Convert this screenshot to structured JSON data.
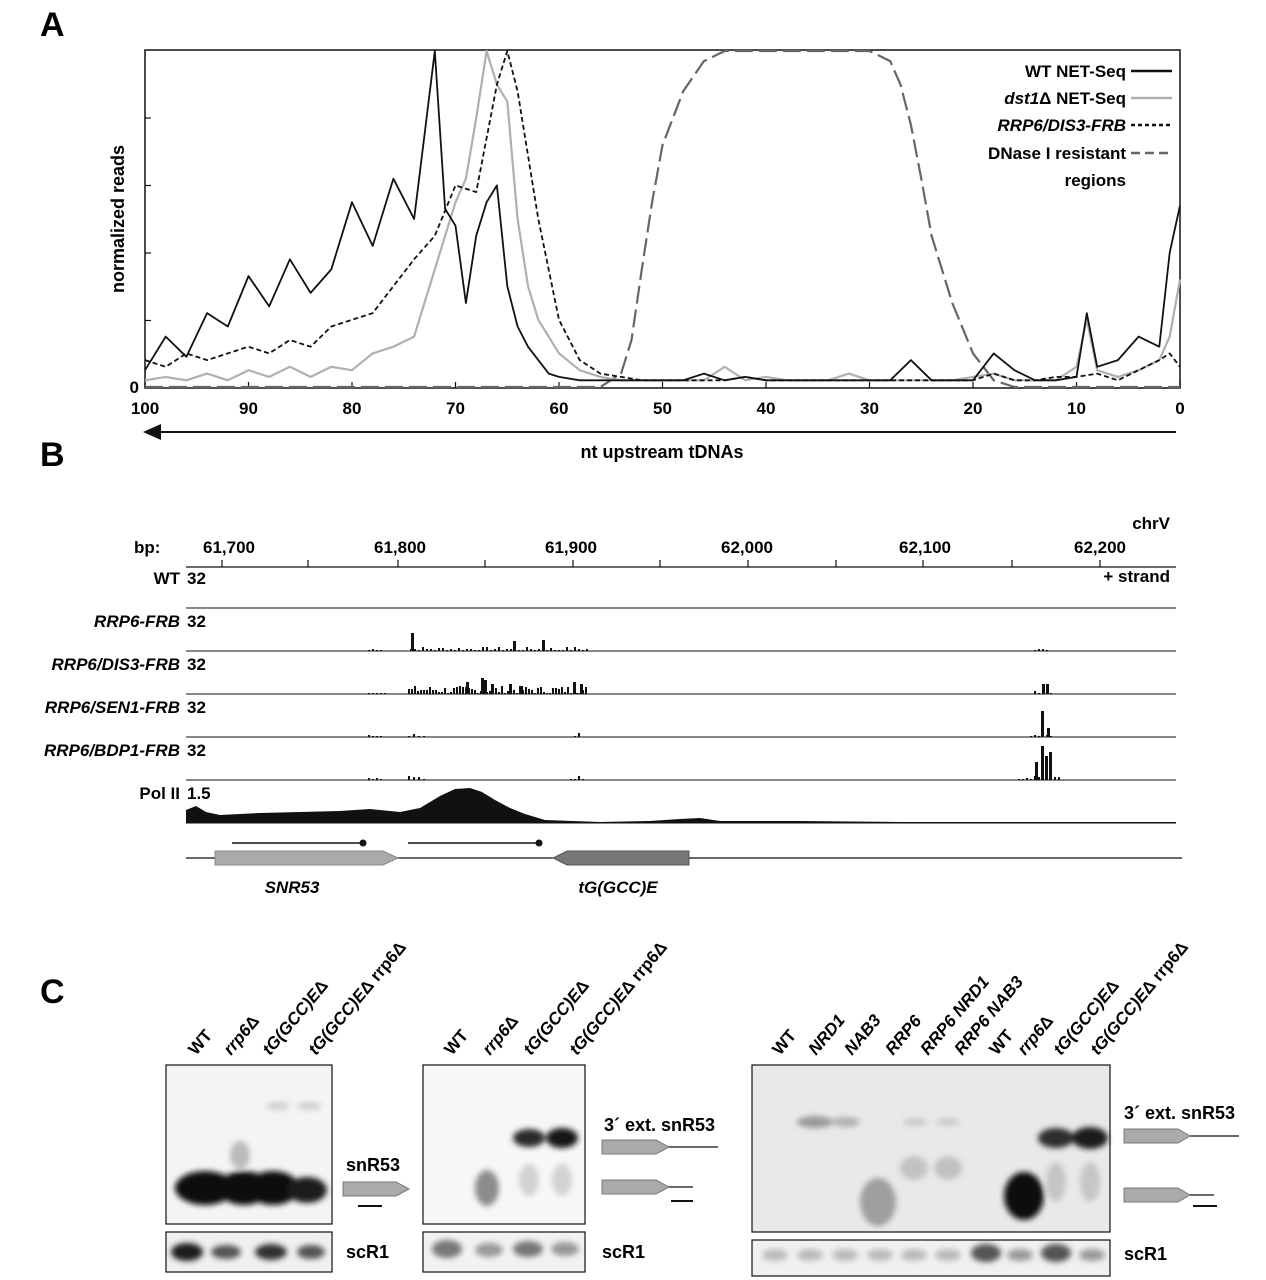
{
  "panel_a": {
    "letter": "A",
    "chart_data": {
      "type": "line",
      "xlabel": "nt upstream tDNAs",
      "ylabel": "normalized reads",
      "xlim": [
        100,
        0
      ],
      "x_reversed": true,
      "x_ticks": [
        "100",
        "90",
        "80",
        "70",
        "60",
        "50",
        "40",
        "30",
        "20",
        "10",
        "0"
      ],
      "y_ticks": [
        "0"
      ],
      "ylim": [
        0,
        1
      ],
      "legend_placement": "top-right",
      "series": [
        {
          "name": "WT NET-Seq",
          "name_prefix": "WT",
          "name_italic": "",
          "name_suffix": " NET-Seq",
          "color": "#111111",
          "style": "solid",
          "x": [
            100,
            98,
            96,
            94,
            92,
            90,
            88,
            86,
            84,
            82,
            80,
            78,
            76,
            74,
            73,
            72,
            71,
            70,
            69,
            68,
            67,
            66,
            65,
            64,
            63,
            62,
            61,
            60,
            58,
            56,
            54,
            52,
            50,
            48,
            46,
            44,
            42,
            40,
            38,
            36,
            34,
            32,
            30,
            28,
            26,
            24,
            22,
            20,
            18,
            16,
            14,
            12,
            10,
            9,
            8,
            6,
            4,
            2,
            1,
            0
          ],
          "y": [
            0.05,
            0.15,
            0.09,
            0.22,
            0.18,
            0.33,
            0.24,
            0.38,
            0.28,
            0.35,
            0.55,
            0.42,
            0.62,
            0.5,
            0.75,
            1.0,
            0.53,
            0.48,
            0.25,
            0.45,
            0.55,
            0.6,
            0.3,
            0.18,
            0.12,
            0.08,
            0.04,
            0.03,
            0.02,
            0.02,
            0.02,
            0.02,
            0.02,
            0.02,
            0.04,
            0.02,
            0.03,
            0.02,
            0.02,
            0.02,
            0.02,
            0.02,
            0.02,
            0.02,
            0.08,
            0.02,
            0.02,
            0.02,
            0.1,
            0.05,
            0.02,
            0.02,
            0.03,
            0.22,
            0.06,
            0.08,
            0.15,
            0.12,
            0.4,
            0.54
          ]
        },
        {
          "name": "dst1Δ NET-Seq",
          "name_prefix": "",
          "name_italic": "dst1",
          "name_suffix": "Δ NET-Seq",
          "color": "#b0b0b0",
          "style": "solid",
          "x": [
            100,
            98,
            96,
            94,
            92,
            90,
            88,
            86,
            84,
            82,
            80,
            78,
            76,
            74,
            72,
            70,
            69,
            68,
            67,
            66,
            65,
            64,
            63,
            62,
            61,
            60,
            58,
            56,
            54,
            52,
            50,
            48,
            46,
            44,
            42,
            40,
            38,
            36,
            34,
            32,
            30,
            28,
            26,
            24,
            22,
            20,
            18,
            16,
            14,
            12,
            10,
            9,
            8,
            6,
            4,
            2,
            1,
            0
          ],
          "y": [
            0.02,
            0.03,
            0.02,
            0.04,
            0.02,
            0.05,
            0.03,
            0.06,
            0.03,
            0.06,
            0.05,
            0.1,
            0.12,
            0.15,
            0.35,
            0.55,
            0.62,
            0.8,
            1.0,
            0.9,
            0.85,
            0.5,
            0.3,
            0.2,
            0.15,
            0.1,
            0.05,
            0.03,
            0.02,
            0.02,
            0.02,
            0.02,
            0.02,
            0.06,
            0.02,
            0.03,
            0.02,
            0.02,
            0.02,
            0.04,
            0.02,
            0.02,
            0.02,
            0.02,
            0.02,
            0.03,
            0.04,
            0.02,
            0.02,
            0.02,
            0.06,
            0.2,
            0.05,
            0.03,
            0.05,
            0.08,
            0.15,
            0.32
          ]
        },
        {
          "name": "RRP6/DIS3-FRB",
          "name_prefix": "",
          "name_italic": "RRP6/DIS3-FRB",
          "name_suffix": "",
          "color": "#111111",
          "style": "short-dash",
          "x": [
            100,
            98,
            96,
            94,
            92,
            90,
            88,
            86,
            84,
            82,
            80,
            78,
            76,
            74,
            72,
            70,
            68,
            66,
            65,
            64,
            62,
            60,
            58,
            56,
            54,
            52,
            50,
            48,
            46,
            44,
            42,
            40,
            38,
            36,
            34,
            32,
            30,
            28,
            26,
            24,
            22,
            20,
            18,
            16,
            14,
            12,
            10,
            8,
            6,
            4,
            2,
            1,
            0
          ],
          "y": [
            0.08,
            0.06,
            0.1,
            0.08,
            0.1,
            0.12,
            0.1,
            0.14,
            0.12,
            0.18,
            0.2,
            0.22,
            0.3,
            0.38,
            0.45,
            0.6,
            0.58,
            0.9,
            1.0,
            0.88,
            0.5,
            0.2,
            0.08,
            0.04,
            0.03,
            0.02,
            0.02,
            0.02,
            0.02,
            0.02,
            0.03,
            0.02,
            0.02,
            0.02,
            0.02,
            0.02,
            0.02,
            0.02,
            0.02,
            0.02,
            0.02,
            0.02,
            0.04,
            0.02,
            0.02,
            0.03,
            0.03,
            0.04,
            0.02,
            0.05,
            0.08,
            0.1,
            0.06
          ]
        },
        {
          "name": "DNase I resistant regions",
          "name_prefix": "DNase I resistant",
          "name_italic": "",
          "name_suffix": "",
          "name_line2": "regions",
          "color": "#666666",
          "style": "long-dash",
          "x": [
            100,
            60,
            56,
            54,
            53,
            52,
            51,
            50,
            48,
            46,
            44,
            42,
            40,
            38,
            36,
            34,
            32,
            30,
            28,
            27,
            26,
            25,
            24,
            22,
            20,
            18,
            16,
            0
          ],
          "y": [
            0.0,
            0.0,
            0.0,
            0.04,
            0.14,
            0.35,
            0.55,
            0.72,
            0.88,
            0.97,
            1.0,
            1.0,
            1.0,
            1.0,
            1.0,
            1.0,
            1.0,
            1.0,
            0.97,
            0.9,
            0.78,
            0.62,
            0.45,
            0.25,
            0.1,
            0.02,
            0.0,
            0.0
          ]
        }
      ]
    }
  },
  "panel_b": {
    "letter": "B",
    "bp_label": "bp:",
    "chrom": "chrV",
    "strand": "+ strand",
    "coords": [
      "61,700",
      "61,800",
      "61,900",
      "62,000",
      "62,100",
      "62,200"
    ],
    "tracks": [
      {
        "label": "WT",
        "italic": false,
        "scale": "32"
      },
      {
        "label": "RRP6-FRB",
        "italic": true,
        "scale": "32"
      },
      {
        "label": "RRP6/DIS3-FRB",
        "italic": true,
        "scale": "32"
      },
      {
        "label": "RRP6/SEN1-FRB",
        "italic": true,
        "scale": "32"
      },
      {
        "label": "RRP6/BDP1-FRB",
        "italic": true,
        "scale": "32"
      },
      {
        "label": "Pol II",
        "italic": false,
        "scale": "1.5"
      }
    ],
    "genes": [
      {
        "name": "SNR53",
        "color": "#aaaaaa"
      },
      {
        "name": "tG(GCC)E",
        "color": "#777777"
      }
    ]
  },
  "panel_c": {
    "letter": "C",
    "blots": [
      {
        "lanes": [
          {
            "pre": "WT",
            "it": "",
            "post": ""
          },
          {
            "pre": "",
            "it": "rrp6",
            "post": "Δ"
          },
          {
            "pre": "",
            "it": "tG(GCC)E",
            "post": "Δ"
          },
          {
            "pre": "",
            "it": "tG(GCC)E",
            "post": "Δ rrp6Δ"
          }
        ],
        "bands": [
          "snR53"
        ],
        "loading": "scR1"
      },
      {
        "lanes": [
          {
            "pre": "WT",
            "it": "",
            "post": ""
          },
          {
            "pre": "",
            "it": "rrp6",
            "post": "Δ"
          },
          {
            "pre": "",
            "it": "tG(GCC)E",
            "post": "Δ"
          },
          {
            "pre": "",
            "it": "tG(GCC)E",
            "post": "Δ rrp6Δ"
          }
        ],
        "bands": [
          "3´ ext. snR53"
        ],
        "loading": "scR1"
      },
      {
        "lanes": [
          {
            "pre": "WT",
            "it": "",
            "post": ""
          },
          {
            "pre": "",
            "it": "NRD1",
            "post": ""
          },
          {
            "pre": "",
            "it": "NAB3",
            "post": ""
          },
          {
            "pre": "",
            "it": "RRP6",
            "post": ""
          },
          {
            "pre": "",
            "it": "RRP6 NRD1",
            "post": ""
          },
          {
            "pre": "",
            "it": "RRP6 NAB3",
            "post": ""
          },
          {
            "pre": "WT",
            "it": "",
            "post": ""
          },
          {
            "pre": "",
            "it": "rrp6",
            "post": "Δ"
          },
          {
            "pre": "",
            "it": "tG(GCC)E",
            "post": "Δ"
          },
          {
            "pre": "",
            "it": "tG(GCC)E",
            "post": "Δ rrp6Δ"
          }
        ],
        "bands": [
          "3´ ext. snR53"
        ],
        "loading": "scR1"
      }
    ]
  }
}
